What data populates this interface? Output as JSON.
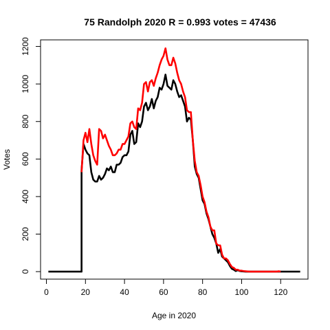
{
  "chart_data": {
    "type": "line",
    "title": "75 Randolph 2020 R = 0.993 votes = 47436",
    "xlabel": "Age in 2020",
    "ylabel": "Votes",
    "xlim": [
      -3,
      134
    ],
    "ylim": [
      -40,
      1235
    ],
    "x_ticks": [
      0,
      20,
      40,
      60,
      80,
      100,
      120
    ],
    "y_ticks": [
      0,
      200,
      400,
      600,
      800,
      1000,
      1200
    ],
    "grid": false,
    "legend": "none",
    "series": [
      {
        "color": "#000000",
        "points": [
          [
            1,
            0
          ],
          [
            18,
            0
          ],
          [
            18,
            540
          ],
          [
            19,
            680
          ],
          [
            20,
            650
          ],
          [
            21,
            630
          ],
          [
            22,
            620
          ],
          [
            23,
            530
          ],
          [
            24,
            490
          ],
          [
            25,
            480
          ],
          [
            26,
            480
          ],
          [
            27,
            510
          ],
          [
            28,
            490
          ],
          [
            29,
            500
          ],
          [
            30,
            520
          ],
          [
            31,
            550
          ],
          [
            32,
            540
          ],
          [
            33,
            560
          ],
          [
            34,
            530
          ],
          [
            35,
            530
          ],
          [
            36,
            570
          ],
          [
            37,
            570
          ],
          [
            38,
            580
          ],
          [
            39,
            610
          ],
          [
            40,
            620
          ],
          [
            41,
            620
          ],
          [
            42,
            640
          ],
          [
            43,
            730
          ],
          [
            44,
            750
          ],
          [
            45,
            680
          ],
          [
            46,
            690
          ],
          [
            47,
            790
          ],
          [
            48,
            770
          ],
          [
            49,
            800
          ],
          [
            50,
            880
          ],
          [
            51,
            900
          ],
          [
            52,
            860
          ],
          [
            53,
            880
          ],
          [
            54,
            920
          ],
          [
            55,
            870
          ],
          [
            56,
            910
          ],
          [
            57,
            930
          ],
          [
            58,
            980
          ],
          [
            59,
            970
          ],
          [
            60,
            1000
          ],
          [
            61,
            1050
          ],
          [
            62,
            990
          ],
          [
            63,
            980
          ],
          [
            64,
            970
          ],
          [
            65,
            1020
          ],
          [
            66,
            1000
          ],
          [
            67,
            960
          ],
          [
            68,
            930
          ],
          [
            69,
            940
          ],
          [
            70,
            910
          ],
          [
            71,
            880
          ],
          [
            72,
            800
          ],
          [
            73,
            820
          ],
          [
            74,
            810
          ],
          [
            75,
            700
          ],
          [
            76,
            560
          ],
          [
            77,
            520
          ],
          [
            78,
            500
          ],
          [
            79,
            440
          ],
          [
            80,
            380
          ],
          [
            81,
            360
          ],
          [
            82,
            310
          ],
          [
            83,
            280
          ],
          [
            84,
            240
          ],
          [
            85,
            200
          ],
          [
            86,
            180
          ],
          [
            87,
            150
          ],
          [
            88,
            100
          ],
          [
            89,
            120
          ],
          [
            90,
            80
          ],
          [
            91,
            70
          ],
          [
            92,
            60
          ],
          [
            93,
            50
          ],
          [
            94,
            30
          ],
          [
            95,
            15
          ],
          [
            96,
            10
          ],
          [
            97,
            3
          ],
          [
            98,
            8
          ],
          [
            99,
            3
          ],
          [
            100,
            2
          ],
          [
            101,
            1
          ],
          [
            102,
            0
          ],
          [
            130,
            0
          ]
        ]
      },
      {
        "color": "#ff0000",
        "points": [
          [
            18,
            530
          ],
          [
            19,
            700
          ],
          [
            20,
            740
          ],
          [
            21,
            690
          ],
          [
            22,
            760
          ],
          [
            23,
            680
          ],
          [
            24,
            620
          ],
          [
            25,
            590
          ],
          [
            26,
            570
          ],
          [
            27,
            760
          ],
          [
            28,
            750
          ],
          [
            29,
            710
          ],
          [
            30,
            730
          ],
          [
            31,
            700
          ],
          [
            32,
            670
          ],
          [
            33,
            650
          ],
          [
            34,
            620
          ],
          [
            35,
            620
          ],
          [
            36,
            630
          ],
          [
            37,
            650
          ],
          [
            38,
            650
          ],
          [
            39,
            680
          ],
          [
            40,
            680
          ],
          [
            41,
            700
          ],
          [
            42,
            720
          ],
          [
            43,
            790
          ],
          [
            44,
            800
          ],
          [
            45,
            770
          ],
          [
            46,
            760
          ],
          [
            47,
            870
          ],
          [
            48,
            860
          ],
          [
            49,
            900
          ],
          [
            50,
            1000
          ],
          [
            51,
            1010
          ],
          [
            52,
            960
          ],
          [
            53,
            1010
          ],
          [
            54,
            1020
          ],
          [
            55,
            990
          ],
          [
            56,
            1030
          ],
          [
            57,
            1060
          ],
          [
            58,
            1100
          ],
          [
            59,
            1130
          ],
          [
            60,
            1150
          ],
          [
            61,
            1190
          ],
          [
            62,
            1130
          ],
          [
            63,
            1100
          ],
          [
            64,
            1100
          ],
          [
            65,
            1140
          ],
          [
            66,
            1110
          ],
          [
            67,
            1060
          ],
          [
            68,
            1020
          ],
          [
            69,
            1000
          ],
          [
            70,
            960
          ],
          [
            71,
            930
          ],
          [
            72,
            860
          ],
          [
            73,
            850
          ],
          [
            74,
            850
          ],
          [
            75,
            700
          ],
          [
            76,
            590
          ],
          [
            77,
            530
          ],
          [
            78,
            510
          ],
          [
            79,
            460
          ],
          [
            80,
            400
          ],
          [
            81,
            370
          ],
          [
            82,
            320
          ],
          [
            83,
            290
          ],
          [
            84,
            240
          ],
          [
            85,
            220
          ],
          [
            86,
            220
          ],
          [
            87,
            150
          ],
          [
            88,
            140
          ],
          [
            89,
            140
          ],
          [
            90,
            90
          ],
          [
            91,
            70
          ],
          [
            92,
            70
          ],
          [
            93,
            60
          ],
          [
            94,
            40
          ],
          [
            95,
            25
          ],
          [
            96,
            20
          ],
          [
            97,
            10
          ],
          [
            98,
            10
          ],
          [
            99,
            5
          ],
          [
            100,
            5
          ],
          [
            101,
            3
          ],
          [
            102,
            2
          ],
          [
            103,
            1
          ],
          [
            104,
            0
          ],
          [
            112,
            0
          ],
          [
            118,
            0
          ],
          [
            119,
            2
          ],
          [
            120,
            0
          ]
        ]
      }
    ]
  }
}
